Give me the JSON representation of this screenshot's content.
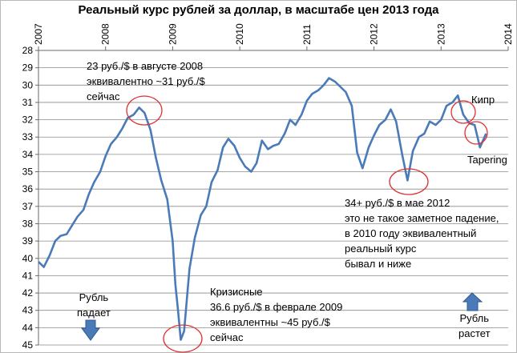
{
  "chart_data": {
    "type": "line",
    "title": "Реальный курс рублей за доллар, в масштабе цен 2013 года",
    "x_ticks": [
      "2007",
      "2008",
      "2009",
      "2010",
      "2011",
      "2012",
      "2013",
      "2014"
    ],
    "y_ticks": [
      28,
      29,
      30,
      31,
      32,
      33,
      34,
      35,
      36,
      37,
      38,
      39,
      40,
      41,
      42,
      43,
      44,
      45
    ],
    "ylim": [
      28,
      45
    ],
    "y_inverted": true,
    "xlim": [
      2007.0,
      2014.0
    ],
    "grid": true,
    "series_color": "#4a7ab8",
    "x": [
      2007.0,
      2007.08,
      2007.17,
      2007.25,
      2007.33,
      2007.42,
      2007.5,
      2007.58,
      2007.67,
      2007.75,
      2007.83,
      2007.92,
      2008.0,
      2008.08,
      2008.17,
      2008.25,
      2008.33,
      2008.42,
      2008.5,
      2008.58,
      2008.67,
      2008.75,
      2008.83,
      2008.92,
      2009.0,
      2009.04,
      2009.08,
      2009.12,
      2009.17,
      2009.25,
      2009.33,
      2009.42,
      2009.5,
      2009.58,
      2009.67,
      2009.75,
      2009.83,
      2009.92,
      2010.0,
      2010.08,
      2010.17,
      2010.25,
      2010.33,
      2010.42,
      2010.5,
      2010.58,
      2010.67,
      2010.75,
      2010.83,
      2010.92,
      2011.0,
      2011.08,
      2011.17,
      2011.25,
      2011.33,
      2011.42,
      2011.5,
      2011.58,
      2011.67,
      2011.75,
      2011.83,
      2011.92,
      2012.0,
      2012.08,
      2012.17,
      2012.25,
      2012.33,
      2012.42,
      2012.5,
      2012.58,
      2012.67,
      2012.75,
      2012.83,
      2012.92,
      2013.0,
      2013.08,
      2013.17,
      2013.25,
      2013.33,
      2013.42,
      2013.5,
      2013.58,
      2013.67
    ],
    "values": [
      40.2,
      40.5,
      39.8,
      39.0,
      38.7,
      38.6,
      38.1,
      37.6,
      37.2,
      36.3,
      35.6,
      35.0,
      34.1,
      33.4,
      33.0,
      32.5,
      31.9,
      31.7,
      31.3,
      31.6,
      32.6,
      34.2,
      35.5,
      36.6,
      39.0,
      41.5,
      43.0,
      44.7,
      44.2,
      40.6,
      38.8,
      37.5,
      37.0,
      35.6,
      34.9,
      33.6,
      33.1,
      33.5,
      34.2,
      34.7,
      35.0,
      34.5,
      33.2,
      33.7,
      33.5,
      33.4,
      32.8,
      32.0,
      32.3,
      31.7,
      30.9,
      30.5,
      30.3,
      30.0,
      29.6,
      29.8,
      30.1,
      30.4,
      31.2,
      33.9,
      34.8,
      33.6,
      32.9,
      32.3,
      32.0,
      31.4,
      32.1,
      34.0,
      35.5,
      33.8,
      33.0,
      32.8,
      32.1,
      32.3,
      32.0,
      31.2,
      31.0,
      30.6,
      31.7,
      32.2,
      32.3,
      33.6,
      32.8
    ],
    "annotations": [
      "23 руб./$ в августе 2008\nэквивалентно ~31 руб./$\nсейчас",
      "Кризисные\n36.6 руб./$ в феврале 2009\nэквивалентны ~45 руб./$\nсейчас",
      "34+ руб./$ в мае 2012\nэто не такое заметное  падение,\nв 2010  году эквивалентный\nреальный курс\nбывал и ниже",
      "Кипр",
      "Tapering",
      "Рубль\nпадает",
      "Рубль\nрастет"
    ]
  }
}
